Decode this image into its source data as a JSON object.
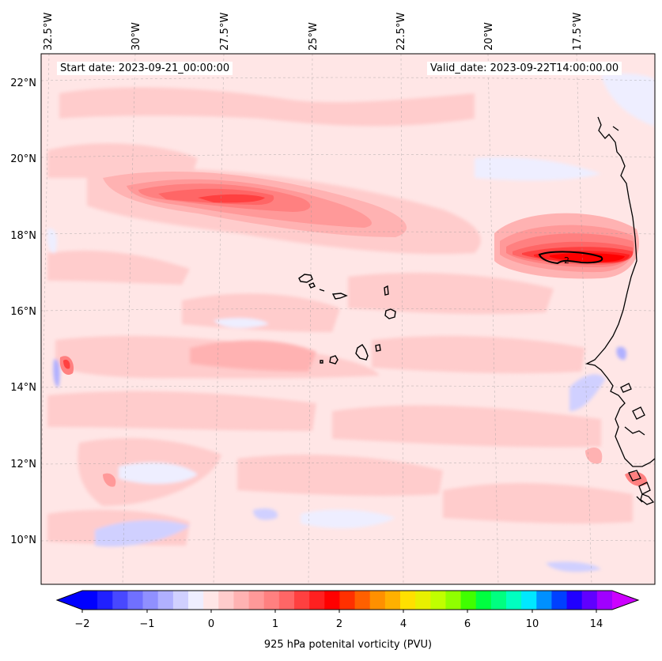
{
  "map": {
    "start_date": "Start date: 2023-09-21_00:00:00",
    "valid_date": "Valid_date: 2023-09-22T14:00:00.00",
    "lon_labels": [
      "32.5°W",
      "30°W",
      "27.5°W",
      "25°W",
      "22.5°W",
      "20°W",
      "17.5°W"
    ],
    "lat_labels": [
      "22°N",
      "20°N",
      "18°N",
      "16°N",
      "14°N",
      "12°N",
      "10°N"
    ],
    "background_color": "#ffe6e6",
    "extent": {
      "lon_min": -32.5,
      "lon_max": -15.0,
      "lat_min": 9.0,
      "lat_max": 22.8
    }
  },
  "features": {
    "pv_maxima": [
      {
        "lon_range": [
          -29.5,
          -23.0
        ],
        "lat": 19.0,
        "level": "1.0-1.5 PVU"
      },
      {
        "lon_range": [
          -20.5,
          -15.0
        ],
        "lat": 17.5,
        "level": "1.5-2.0 PVU, contour 2"
      },
      {
        "lon": -32.2,
        "lat": 14.6,
        "level": "1.0-1.5 PVU"
      }
    ],
    "contour_label": "2",
    "islands": "Cape Verde"
  },
  "colorbar": {
    "label": "925 hPa potenital vorticity (PVU)",
    "ticks": [
      "−2",
      "−1",
      "0",
      "1",
      "2",
      "4",
      "6",
      "10",
      "14"
    ],
    "colors": [
      "#0000ff",
      "#2020ff",
      "#4848ff",
      "#7070ff",
      "#9090ff",
      "#b0b0ff",
      "#d0d0ff",
      "#eeeeff",
      "#ffe6e6",
      "#ffcccc",
      "#ffb2b2",
      "#ff9999",
      "#ff8080",
      "#ff6666",
      "#ff4040",
      "#ff2020",
      "#ff0000",
      "#ff3000",
      "#ff6000",
      "#ff9000",
      "#ffb000",
      "#ffe000",
      "#e8f000",
      "#c0ff00",
      "#90ff00",
      "#40ff00",
      "#00ff40",
      "#00ff80",
      "#00ffc0",
      "#00e8ff",
      "#0090ff",
      "#0040ff",
      "#2000ff",
      "#6000ff",
      "#a000ff"
    ],
    "extend_low_color": "#0000ff",
    "extend_high_color": "#cc00ff"
  }
}
